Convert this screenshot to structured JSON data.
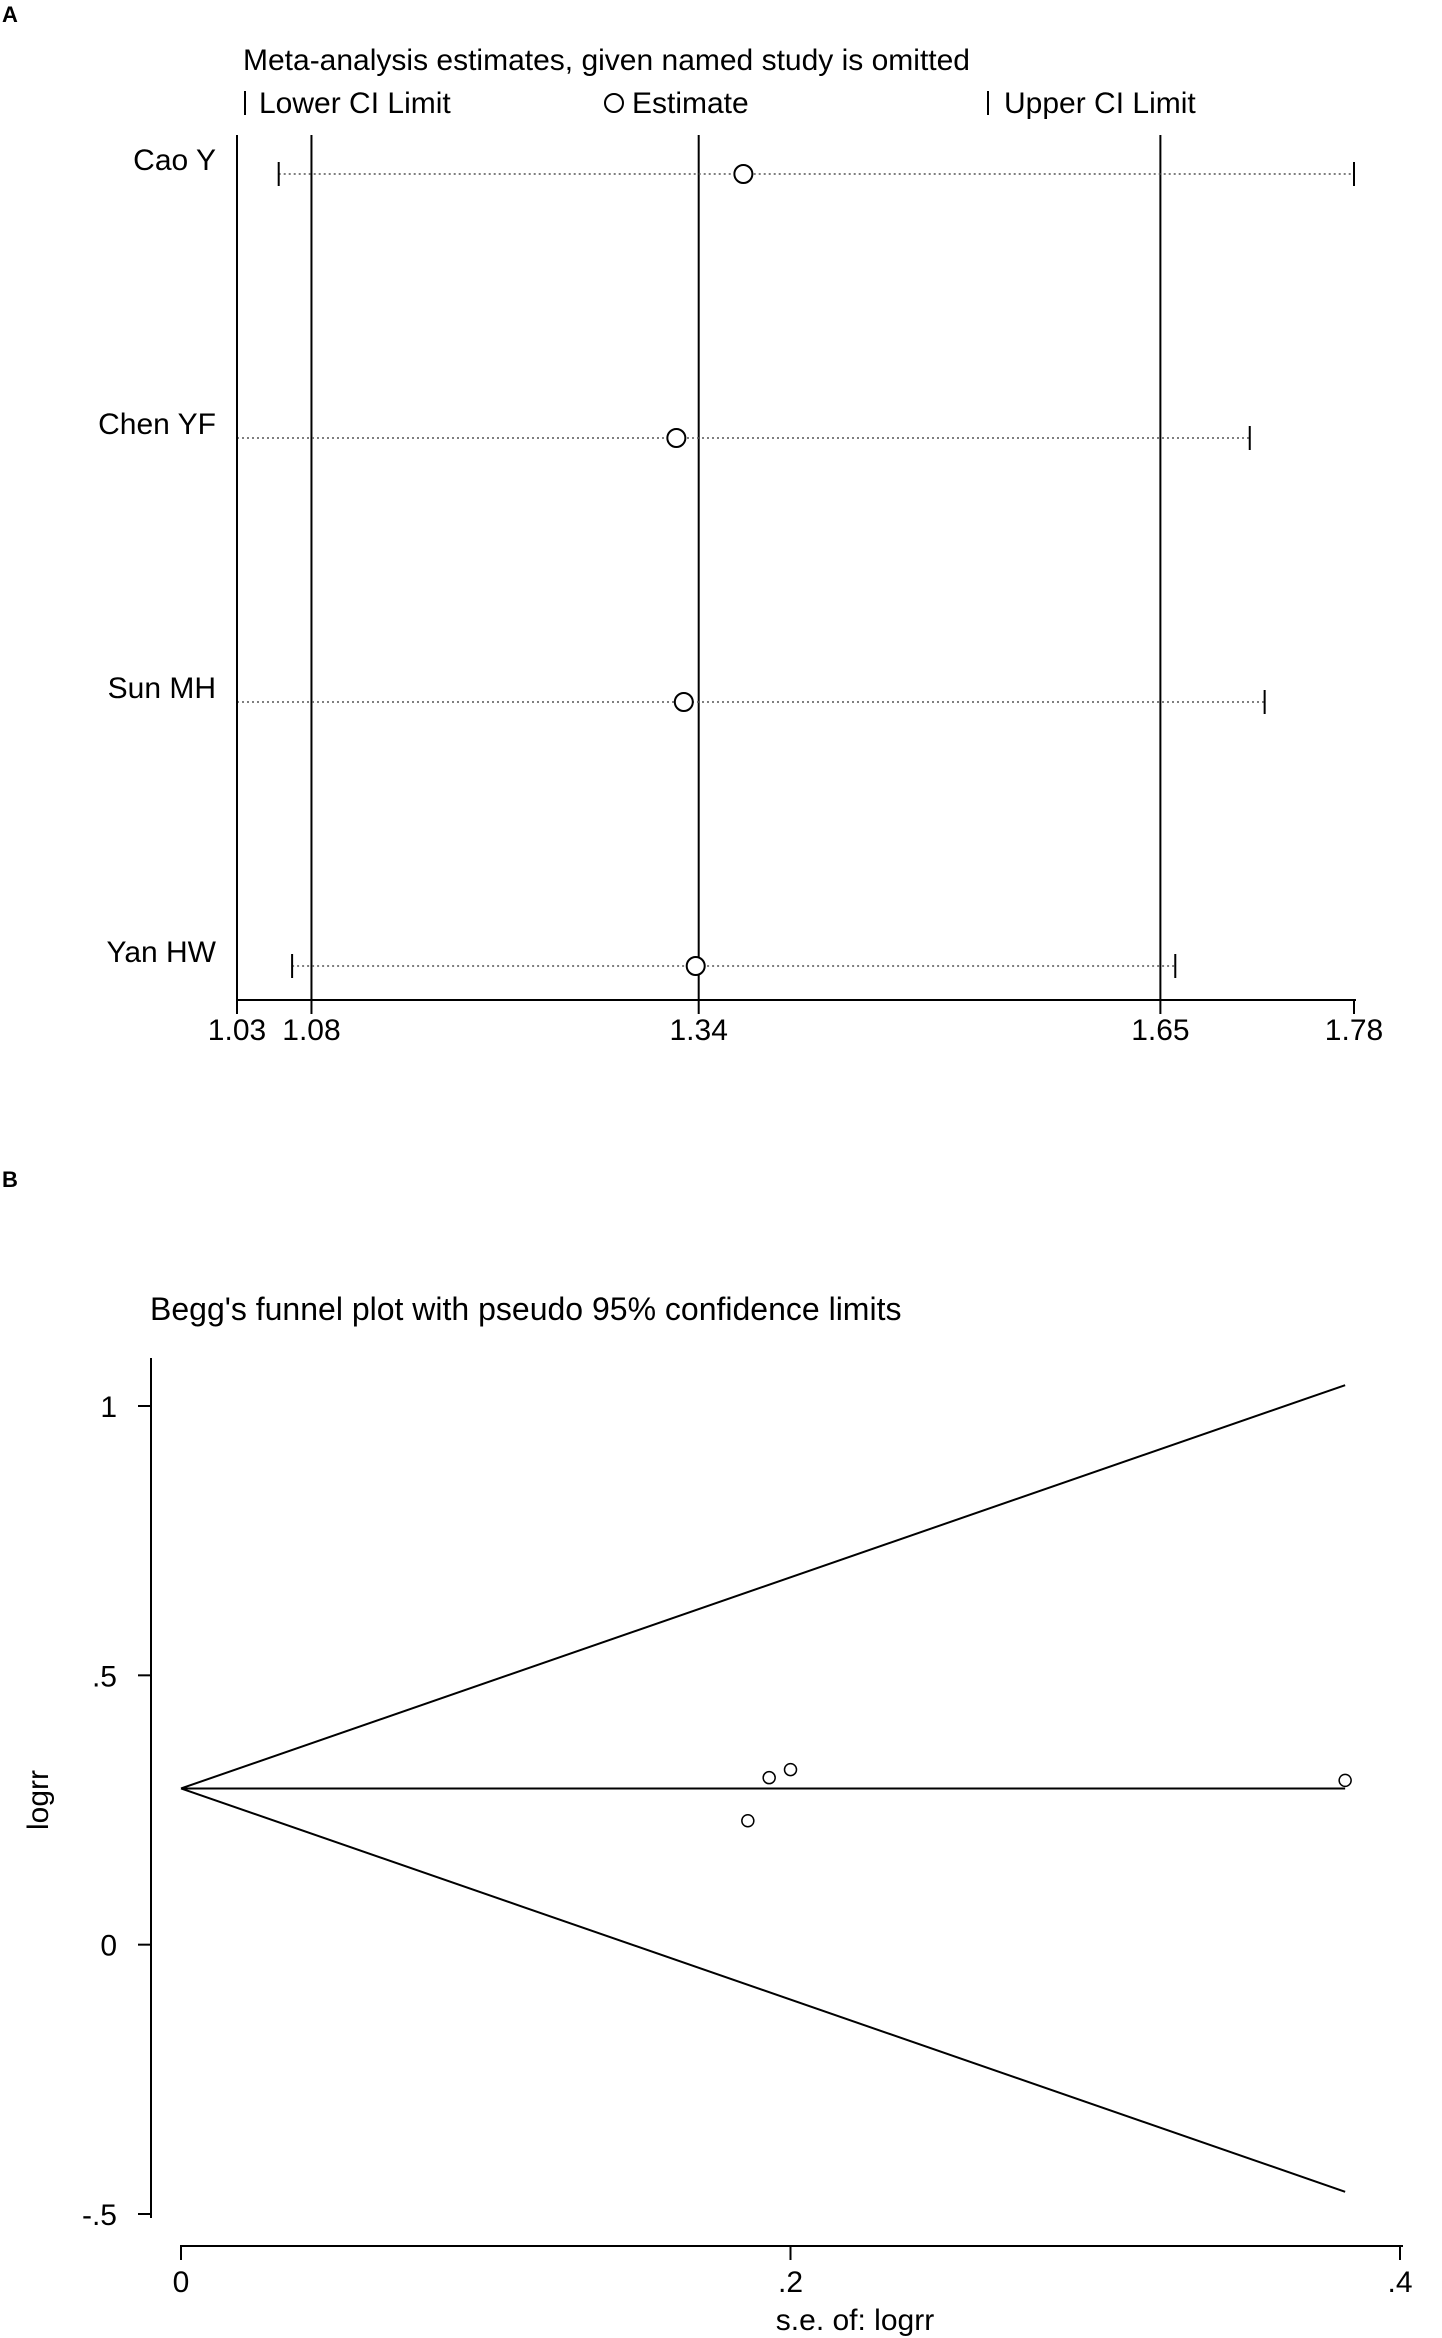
{
  "chart_data": [
    {
      "panel": "A",
      "type": "scatter",
      "title": "Meta-analysis estimates, given named study is omitted",
      "legend": {
        "lower_label": "Lower CI Limit",
        "estimate_label": "Estimate",
        "upper_label": "Upper CI Limit",
        "placement": "top"
      },
      "studies": [
        "Cao Y",
        "Chen YF",
        "Sun MH",
        "Yan HW"
      ],
      "estimates": [
        1.37,
        1.325,
        1.33,
        1.338
      ],
      "lower": [
        1.058,
        1.03,
        1.03,
        1.067
      ],
      "upper": [
        1.78,
        1.71,
        1.72,
        1.66
      ],
      "reference_lines": [
        1.08,
        1.34,
        1.65
      ],
      "xlim": [
        1.03,
        1.78
      ],
      "xticks": [
        "1.03",
        "1.08",
        "1.34",
        "1.65",
        "1.78"
      ],
      "xtick_values": [
        1.03,
        1.08,
        1.34,
        1.65,
        1.78
      ],
      "grid": false
    },
    {
      "panel": "B",
      "type": "scatter",
      "title": "Begg's funnel plot with pseudo 95% confidence limits",
      "xlabel": "s.e. of: logrr",
      "ylabel": "logrr",
      "xlim": [
        0,
        0.4
      ],
      "ylim": [
        -0.5,
        1
      ],
      "xticks": [
        "0",
        ".2",
        ".4"
      ],
      "xtick_values": [
        0,
        0.2,
        0.4
      ],
      "yticks": [
        "-.5",
        "0",
        ".5",
        "1"
      ],
      "ytick_values": [
        -0.5,
        0,
        0.5,
        1
      ],
      "points": [
        {
          "x": 0.186,
          "y": 0.23
        },
        {
          "x": 0.193,
          "y": 0.31
        },
        {
          "x": 0.2,
          "y": 0.325
        },
        {
          "x": 0.382,
          "y": 0.305
        }
      ],
      "pooled_logrr": 0.29,
      "max_se": 0.382,
      "grid": false
    }
  ]
}
